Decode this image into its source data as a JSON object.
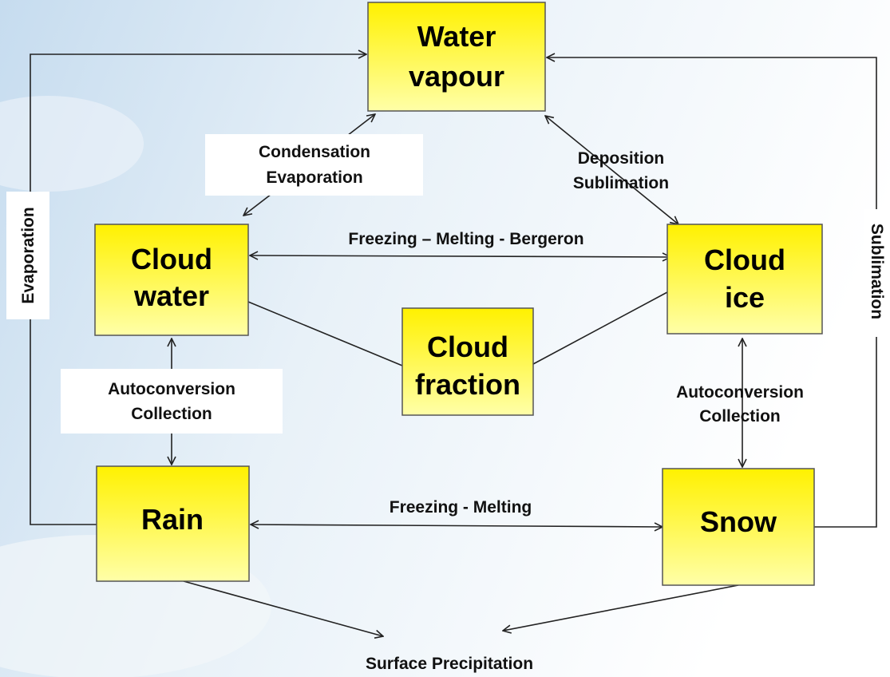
{
  "nodes": [
    {
      "lines": [
        "Water",
        "vapour"
      ]
    },
    {
      "lines": [
        "Cloud",
        "water"
      ]
    },
    {
      "lines": [
        "Cloud",
        "ice"
      ]
    },
    {
      "lines": [
        "Cloud",
        "fraction"
      ]
    },
    {
      "lines": [
        "Rain"
      ]
    },
    {
      "lines": [
        "Snow"
      ]
    }
  ],
  "edge_labels": {
    "condensation": [
      "Condensation",
      "Evaporation"
    ],
    "deposition": [
      "Deposition",
      "Sublimation"
    ],
    "freezing_bergeron": "Freezing – Melting - Bergeron",
    "autoconversion_left": [
      "Autoconversion",
      "Collection"
    ],
    "autoconversion_right": [
      "Autoconversion",
      "Collection"
    ],
    "freezing_melting": "Freezing - Melting",
    "evaporation": "Evaporation",
    "sublimation": "Sublimation",
    "surface": "Surface Precipitation"
  }
}
